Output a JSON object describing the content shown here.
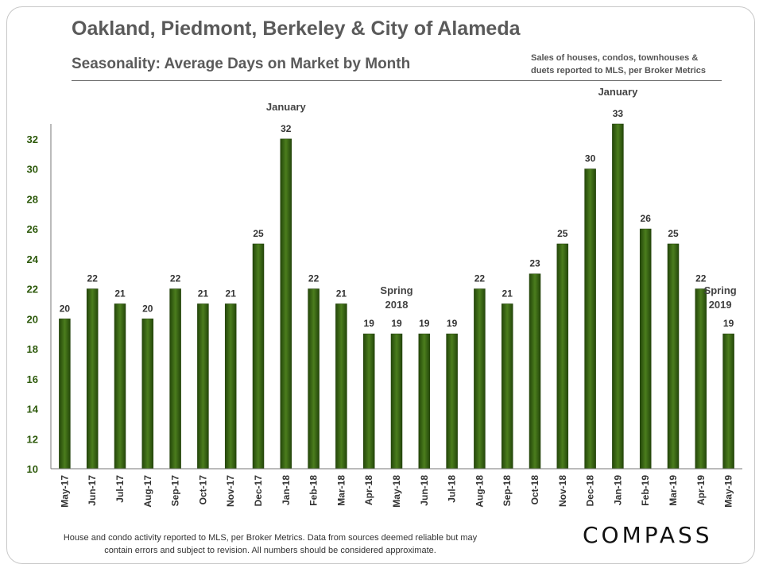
{
  "header": {
    "title": "Oakland, Piedmont, Berkeley & City of Alameda",
    "subtitle": "Seasonality: Average Days on Market by Month",
    "note_line1": "Sales of houses, condos, townhouses &",
    "note_line2": "duets reported to MLS, per Broker Metrics"
  },
  "footer": {
    "line1": "House and condo activity reported to MLS, per Broker Metrics. Data from sources deemed  reliable but may",
    "line2": "contain errors and subject to revision. All numbers should be considered approximate."
  },
  "logo": {
    "text": "COMPASS"
  },
  "colors": {
    "bar": "#2e5a0c",
    "bar_light": "#4b7d1d",
    "axis_label": "#2e5a0c"
  },
  "chart_data": {
    "type": "bar",
    "categories": [
      "May-17",
      "Jun-17",
      "Jul-17",
      "Aug-17",
      "Sep-17",
      "Oct-17",
      "Nov-17",
      "Dec-17",
      "Jan-18",
      "Feb-18",
      "Mar-18",
      "Apr-18",
      "May-18",
      "Jun-18",
      "Jul-18",
      "Aug-18",
      "Sep-18",
      "Oct-18",
      "Nov-18",
      "Dec-18",
      "Jan-19",
      "Feb-19",
      "Mar-19",
      "Apr-19",
      "May-19"
    ],
    "values": [
      20,
      22,
      21,
      20,
      22,
      21,
      21,
      25,
      32,
      22,
      21,
      19,
      19,
      19,
      19,
      22,
      21,
      23,
      25,
      30,
      33,
      26,
      25,
      22,
      19
    ],
    "ylim": [
      10,
      33
    ],
    "yticks": [
      10,
      12,
      14,
      16,
      18,
      20,
      22,
      24,
      26,
      28,
      30,
      32
    ],
    "annotations": [
      {
        "lines": [
          "January"
        ],
        "index": 8
      },
      {
        "lines": [
          "Spring",
          "2018"
        ],
        "index": 12
      },
      {
        "lines": [
          "January"
        ],
        "index": 20
      },
      {
        "lines": [
          "Spring",
          "2019"
        ],
        "index": 23.7
      }
    ]
  }
}
